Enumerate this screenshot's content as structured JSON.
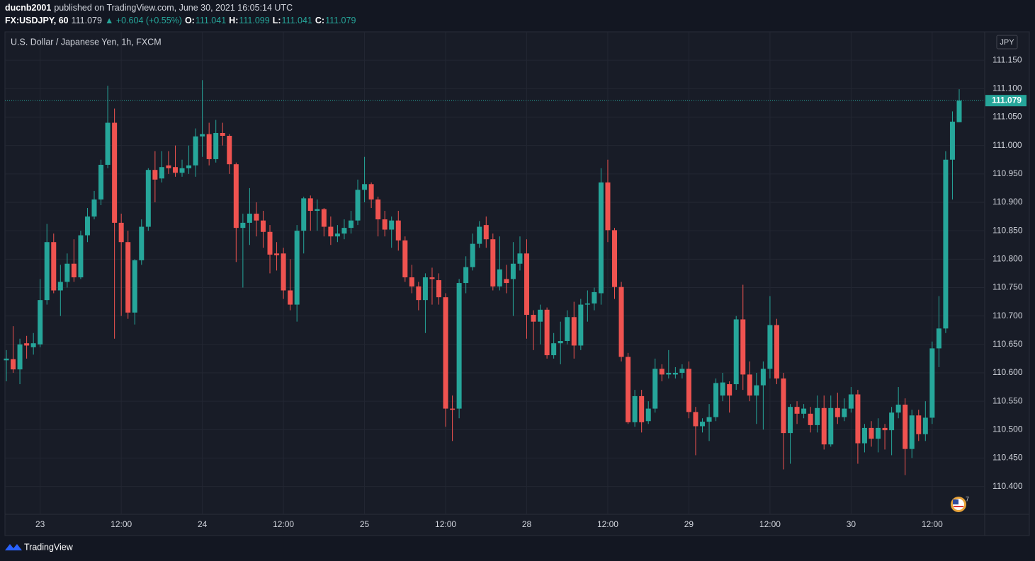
{
  "header": {
    "author": "ducnb2001",
    "published": "published on TradingView.com, June 30, 2021 16:05:14 UTC",
    "symbol": "FX:USDJPY, 60",
    "price": "111.079",
    "change": "▲ +0.604 (+0.55%)",
    "ohlc": [
      {
        "label": "O:",
        "value": "111.041"
      },
      {
        "label": "H:",
        "value": "111.099"
      },
      {
        "label": "L:",
        "value": "111.041"
      },
      {
        "label": "C:",
        "value": "111.079"
      }
    ]
  },
  "chart_data": {
    "type": "candlestick",
    "title": "U.S. Dollar / Japanese Yen, 1h, FXCM",
    "currency": "JPY",
    "up_color": "#26a69a",
    "down_color": "#ef5350",
    "grid": true,
    "events_badge": "7",
    "categories": [
      null,
      null,
      null,
      null,
      null,
      "23",
      null,
      null,
      null,
      null,
      null,
      null,
      null,
      null,
      null,
      null,
      null,
      "12:00",
      null,
      null,
      null,
      null,
      null,
      null,
      null,
      null,
      null,
      null,
      null,
      "24",
      null,
      null,
      null,
      null,
      null,
      null,
      null,
      null,
      null,
      null,
      null,
      "12:00",
      null,
      null,
      null,
      null,
      null,
      null,
      null,
      null,
      null,
      null,
      null,
      "25",
      null,
      null,
      null,
      null,
      null,
      null,
      null,
      null,
      null,
      null,
      null,
      "12:00",
      null,
      null,
      null,
      null,
      null,
      null,
      null,
      null,
      null,
      null,
      null,
      "28",
      null,
      null,
      null,
      null,
      null,
      null,
      null,
      null,
      null,
      null,
      null,
      "12:00",
      null,
      null,
      null,
      null,
      null,
      null,
      null,
      null,
      null,
      null,
      null,
      "29",
      null,
      null,
      null,
      null,
      null,
      null,
      null,
      null,
      null,
      null,
      null,
      "12:00",
      null,
      null,
      null,
      null,
      null,
      null,
      null,
      null,
      null,
      null,
      null,
      "30",
      null,
      null,
      null,
      null,
      null,
      null,
      null,
      null,
      null,
      null,
      null,
      "12:00",
      null,
      null,
      null,
      null
    ],
    "open": [
      110.622,
      110.624,
      110.606,
      110.652,
      110.645,
      110.65,
      110.728,
      110.83,
      110.745,
      110.76,
      110.792,
      110.768,
      110.842,
      110.875,
      110.905,
      110.966,
      111.04,
      110.864,
      110.83,
      110.706,
      110.798,
      110.857,
      110.957,
      110.942,
      110.965,
      110.962,
      110.952,
      110.96,
      110.965,
      111.016,
      111.02,
      110.976,
      111.022,
      111.017,
      110.967,
      110.855,
      110.864,
      110.88,
      110.868,
      110.848,
      110.81,
      110.81,
      110.745,
      110.72,
      110.85,
      110.907,
      110.885,
      110.888,
      110.857,
      110.84,
      110.845,
      110.855,
      110.868,
      110.922,
      110.932,
      110.905,
      110.87,
      110.852,
      110.868,
      110.833,
      110.768,
      110.752,
      110.728,
      110.768,
      110.763,
      110.733,
      110.537,
      110.537,
      110.758,
      110.786,
      110.827,
      110.86,
      110.835,
      110.752,
      110.765,
      110.765,
      110.792,
      110.81,
      110.702,
      110.69,
      110.711,
      110.631,
      110.652,
      110.656,
      110.698,
      110.648,
      110.72,
      110.722,
      110.74,
      110.935,
      110.851,
      110.751,
      110.628,
      110.513,
      110.559,
      110.515,
      110.537,
      110.607,
      110.597,
      110.597,
      110.6,
      110.607,
      110.531,
      110.506,
      110.514,
      110.522,
      110.56,
      110.58,
      110.58,
      110.694,
      110.597,
      110.56,
      110.578,
      110.607,
      110.684,
      110.59,
      110.494,
      110.54,
      110.528,
      110.528,
      110.508,
      110.538,
      110.474,
      110.538,
      110.522,
      110.537,
      110.562,
      110.476,
      110.503,
      110.484,
      110.503,
      110.499,
      110.53,
      110.544,
      110.466,
      110.525,
      110.492,
      110.521,
      110.643,
      110.678,
      110.975,
      111.041
    ],
    "high": [
      110.64,
      110.682,
      110.66,
      110.665,
      110.67,
      110.765,
      110.862,
      110.845,
      110.79,
      110.81,
      110.835,
      110.85,
      110.89,
      110.92,
      110.975,
      111.105,
      111.065,
      110.88,
      110.85,
      110.8,
      110.87,
      110.96,
      110.99,
      110.99,
      110.99,
      111.0,
      110.975,
      111.0,
      111.03,
      111.115,
      111.04,
      111.045,
      111.04,
      111.02,
      110.97,
      110.88,
      110.925,
      110.9,
      110.885,
      110.86,
      110.83,
      110.82,
      110.8,
      110.86,
      110.91,
      110.912,
      110.905,
      110.89,
      110.875,
      110.86,
      110.87,
      110.885,
      110.94,
      110.98,
      110.935,
      110.91,
      110.885,
      110.875,
      110.885,
      110.84,
      110.79,
      110.76,
      110.775,
      110.785,
      110.775,
      110.74,
      110.56,
      110.765,
      110.805,
      110.845,
      110.867,
      110.875,
      110.845,
      110.84,
      110.79,
      110.83,
      110.84,
      110.835,
      110.71,
      110.72,
      110.715,
      110.67,
      110.69,
      110.71,
      110.725,
      110.73,
      110.745,
      110.75,
      110.96,
      110.975,
      110.855,
      110.76,
      110.635,
      110.57,
      110.57,
      110.55,
      110.625,
      110.615,
      110.64,
      110.61,
      110.615,
      110.62,
      110.54,
      110.52,
      110.545,
      110.59,
      110.6,
      110.585,
      110.7,
      110.755,
      110.62,
      110.6,
      110.62,
      110.735,
      110.695,
      110.6,
      110.545,
      110.55,
      110.545,
      110.54,
      110.56,
      110.56,
      110.56,
      110.565,
      110.555,
      110.575,
      110.57,
      110.51,
      110.515,
      110.52,
      110.51,
      110.54,
      110.575,
      110.555,
      110.535,
      110.535,
      110.55,
      110.655,
      110.735,
      110.99,
      111.06,
      111.099
    ],
    "low": [
      110.585,
      110.6,
      110.58,
      110.625,
      110.632,
      110.645,
      110.72,
      110.74,
      110.7,
      110.75,
      110.76,
      110.765,
      110.83,
      110.87,
      110.895,
      110.96,
      110.66,
      110.7,
      110.695,
      110.685,
      110.79,
      110.85,
      110.9,
      110.935,
      110.95,
      110.945,
      110.945,
      110.95,
      110.945,
      110.98,
      110.965,
      110.97,
      111.0,
      110.95,
      110.795,
      110.75,
      110.825,
      110.84,
      110.82,
      110.775,
      110.78,
      110.73,
      110.71,
      110.69,
      110.81,
      110.85,
      110.85,
      110.84,
      110.825,
      110.83,
      110.835,
      110.845,
      110.86,
      110.9,
      110.89,
      110.84,
      110.84,
      110.82,
      110.815,
      110.76,
      110.74,
      110.71,
      110.67,
      110.72,
      110.72,
      110.505,
      110.48,
      110.52,
      110.74,
      110.78,
      110.82,
      110.82,
      110.745,
      110.745,
      110.74,
      110.7,
      110.78,
      110.66,
      110.64,
      110.65,
      110.625,
      110.625,
      110.615,
      110.65,
      110.625,
      110.64,
      110.69,
      110.71,
      110.72,
      110.83,
      110.73,
      110.62,
      110.51,
      110.505,
      110.495,
      110.51,
      110.53,
      110.585,
      110.59,
      110.59,
      110.59,
      110.52,
      110.455,
      110.495,
      110.48,
      110.515,
      110.55,
      110.53,
      110.57,
      110.57,
      110.55,
      110.51,
      110.5,
      110.59,
      110.58,
      110.43,
      110.44,
      110.51,
      110.52,
      110.495,
      110.495,
      110.465,
      110.47,
      110.51,
      110.515,
      110.53,
      110.44,
      110.46,
      110.47,
      110.46,
      110.465,
      110.455,
      110.52,
      110.42,
      110.45,
      110.48,
      110.48,
      110.51,
      110.61,
      110.67,
      110.905,
      111.041
    ],
    "close": [
      110.625,
      110.606,
      110.65,
      110.648,
      110.652,
      110.728,
      110.83,
      110.745,
      110.76,
      110.792,
      110.768,
      110.842,
      110.875,
      110.905,
      110.966,
      111.04,
      110.864,
      110.83,
      110.706,
      110.798,
      110.857,
      110.957,
      110.94,
      110.962,
      110.96,
      110.952,
      110.96,
      110.965,
      111.016,
      111.02,
      110.976,
      111.022,
      111.017,
      110.967,
      110.855,
      110.864,
      110.88,
      110.868,
      110.848,
      110.808,
      110.807,
      110.745,
      110.72,
      110.85,
      110.907,
      110.885,
      110.888,
      110.857,
      110.84,
      110.845,
      110.855,
      110.868,
      110.922,
      110.932,
      110.905,
      110.87,
      110.852,
      110.868,
      110.833,
      110.768,
      110.752,
      110.728,
      110.768,
      110.765,
      110.733,
      110.537,
      110.535,
      110.758,
      110.786,
      110.827,
      110.857,
      110.835,
      110.752,
      110.782,
      110.758,
      110.792,
      110.81,
      110.702,
      110.69,
      110.711,
      110.631,
      110.652,
      110.656,
      110.698,
      110.648,
      110.72,
      110.722,
      110.742,
      110.935,
      110.851,
      110.751,
      110.628,
      110.513,
      110.559,
      110.513,
      110.537,
      110.607,
      110.597,
      110.6,
      110.6,
      110.607,
      110.531,
      110.506,
      110.514,
      110.522,
      110.582,
      110.583,
      110.56,
      110.694,
      110.597,
      110.56,
      110.578,
      110.607,
      110.684,
      110.59,
      110.494,
      110.54,
      110.528,
      110.537,
      110.508,
      110.538,
      110.474,
      110.538,
      110.522,
      110.537,
      110.562,
      110.476,
      110.503,
      110.484,
      110.503,
      110.499,
      110.53,
      110.544,
      110.466,
      110.525,
      110.492,
      110.521,
      110.643,
      110.678,
      110.975,
      111.042,
      111.079
    ],
    "last_price": 111.079,
    "ylim": [
      110.351,
      111.2
    ],
    "yticks": [
      {
        "value": 110.4,
        "label": "110.400"
      },
      {
        "value": 110.45,
        "label": "110.450"
      },
      {
        "value": 110.5,
        "label": "110.500"
      },
      {
        "value": 110.55,
        "label": "110.550"
      },
      {
        "value": 110.6,
        "label": "110.600"
      },
      {
        "value": 110.65,
        "label": "110.650"
      },
      {
        "value": 110.7,
        "label": "110.700"
      },
      {
        "value": 110.75,
        "label": "110.750"
      },
      {
        "value": 110.8,
        "label": "110.800"
      },
      {
        "value": 110.85,
        "label": "110.850"
      },
      {
        "value": 110.9,
        "label": "110.900"
      },
      {
        "value": 110.95,
        "label": "110.950"
      },
      {
        "value": 111.0,
        "label": "111.000"
      },
      {
        "value": 111.05,
        "label": "111.050"
      },
      {
        "value": 111.1,
        "label": "111.100"
      },
      {
        "value": 111.15,
        "label": "111.150"
      }
    ]
  },
  "footer": {
    "brand": "TradingView"
  }
}
